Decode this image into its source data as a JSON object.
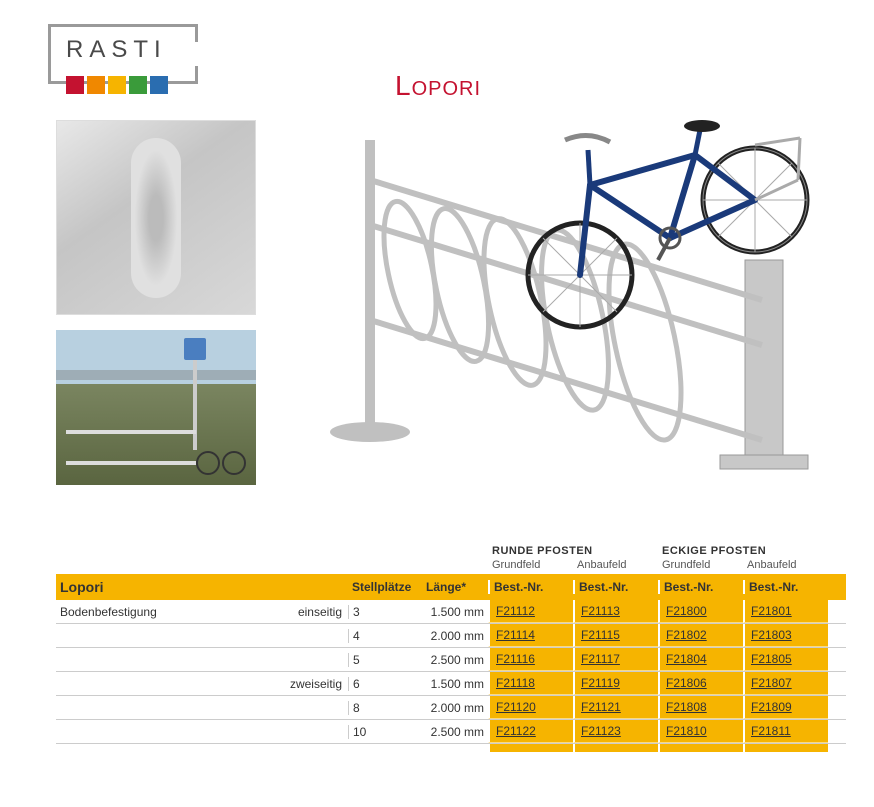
{
  "logo": {
    "text": "RASTI",
    "colors": [
      "#c41230",
      "#f08800",
      "#f6b400",
      "#3a9b3a",
      "#2a6db0"
    ]
  },
  "product_title": "Lopori",
  "table": {
    "group1": "RUNDE PFOSTEN",
    "group2": "ECKIGE PFOSTEN",
    "sub_grund": "Grundfeld",
    "sub_anbau": "Anbaufeld",
    "title": "Lopori",
    "col_stell": "Stellplätze",
    "col_len": "Länge*",
    "col_best": "Best.-Nr.",
    "row_label": "Bodenbefestigung",
    "side_ein": "einseitig",
    "side_zwei": "zweiseitig",
    "rows": [
      {
        "places": "3",
        "len": "1.500 mm",
        "c1": "F21112",
        "c2": "F21113",
        "c3": "F21800",
        "c4": "F21801"
      },
      {
        "places": "4",
        "len": "2.000 mm",
        "c1": "F21114",
        "c2": "F21115",
        "c3": "F21802",
        "c4": "F21803"
      },
      {
        "places": "5",
        "len": "2.500 mm",
        "c1": "F21116",
        "c2": "F21117",
        "c3": "F21804",
        "c4": "F21805"
      },
      {
        "places": "6",
        "len": "1.500 mm",
        "c1": "F21118",
        "c2": "F21119",
        "c3": "F21806",
        "c4": "F21807"
      },
      {
        "places": "8",
        "len": "2.000 mm",
        "c1": "F21120",
        "c2": "F21121",
        "c3": "F21808",
        "c4": "F21809"
      },
      {
        "places": "10",
        "len": "2.500 mm",
        "c1": "F21122",
        "c2": "F21123",
        "c3": "F21810",
        "c4": "F21811"
      }
    ]
  },
  "colors": {
    "accent_yellow": "#f6b400",
    "title_red": "#c41230",
    "metal": "#c0c0c0",
    "bike_blue": "#1a3a7a"
  }
}
